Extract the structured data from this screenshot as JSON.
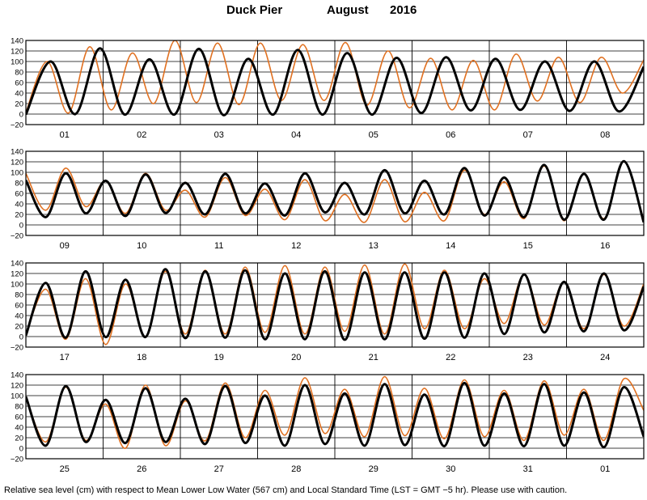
{
  "header": {
    "station": "Duck Pier",
    "month": "August",
    "year": "2016"
  },
  "caption": "Relative sea level (cm) with respect to Mean Lower Low Water (567 cm) and Local Standard Time (LST = GMT −5 hr). Please use with caution.",
  "colors": {
    "predicted": "#000000",
    "observed": "#e07020",
    "grid": "#000000"
  },
  "chart_data": {
    "type": "line",
    "ylim": [
      -20,
      140
    ],
    "yticks": [
      "140",
      "120",
      "100",
      "80",
      "60",
      "40",
      "20",
      "0",
      "−20"
    ],
    "grid": true,
    "panels": [
      {
        "days": [
          "01",
          "02",
          "03",
          "04",
          "05",
          "06",
          "07",
          "08"
        ],
        "series": [
          {
            "values": [
              -1,
              100,
              0,
              125,
              -1,
              104,
              -1,
              124,
              -2,
              105,
              -1,
              122,
              -1,
              116,
              -1,
              107,
              2,
              108,
              7,
              105,
              8,
              100,
              6,
              100,
              5,
              90
            ]
          },
          {
            "values": [
              3,
              100,
              2,
              128,
              8,
              116,
              20,
              140,
              22,
              135,
              18,
              135,
              26,
              132,
              26,
              136,
              17,
              120,
              12,
              106,
              8,
              102,
              8,
              114,
              25,
              108,
              22,
              108,
              40,
              103
            ]
          }
        ]
      },
      {
        "days": [
          "09",
          "10",
          "11",
          "12",
          "13",
          "14",
          "15",
          "16"
        ],
        "series": [
          {
            "values": [
              85,
              15,
              98,
              22,
              84,
              17,
              96,
              23,
              80,
              20,
              97,
              22,
              79,
              18,
              98,
              24,
              80,
              20,
              104,
              22,
              84,
              20,
              108,
              18,
              90,
              15,
              114,
              10,
              97,
              10,
              121,
              5
            ]
          },
          {
            "values": [
              98,
              28,
              108,
              35,
              84,
              22,
              98,
              28,
              66,
              15,
              90,
              18,
              68,
              10,
              86,
              8,
              58,
              5,
              86,
              6,
              62,
              8,
              104,
              20,
              82,
              12,
              112,
              8,
              98,
              12,
              120,
              8
            ]
          }
        ]
      },
      {
        "days": [
          "17",
          "18",
          "19",
          "20",
          "21",
          "22",
          "23",
          "24"
        ],
        "series": [
          {
            "values": [
              2,
              102,
              -2,
              124,
              -1,
              108,
              -1,
              128,
              -3,
              124,
              -2,
              126,
              -5,
              120,
              -5,
              124,
              -6,
              122,
              -5,
              122,
              -4,
              122,
              -2,
              120,
              5,
              118,
              8,
              104,
              10,
              120,
              12,
              95
            ]
          },
          {
            "values": [
              5,
              90,
              -5,
              110,
              -15,
              100,
              0,
              124,
              5,
              126,
              5,
              132,
              8,
              135,
              5,
              132,
              10,
              136,
              5,
              138,
              15,
              126,
              15,
              110,
              25,
              118,
              22,
              104,
              15,
              118,
              20,
              100
            ]
          }
        ]
      },
      {
        "days": [
          "25",
          "26",
          "27",
          "28",
          "29",
          "30",
          "31",
          "01"
        ],
        "series": [
          {
            "values": [
              98,
              5,
              118,
              12,
              92,
              10,
              114,
              12,
              94,
              8,
              118,
              10,
              100,
              5,
              120,
              8,
              104,
              5,
              122,
              6,
              102,
              4,
              124,
              5,
              104,
              4,
              122,
              5,
              106,
              2,
              116,
              22
            ]
          },
          {
            "values": [
              98,
              12,
              116,
              15,
              84,
              0,
              120,
              5,
              90,
              14,
              124,
              20,
              110,
              25,
              134,
              28,
              112,
              22,
              136,
              24,
              114,
              18,
              130,
              22,
              110,
              15,
              128,
              25,
              112,
              15,
              132,
              72
            ]
          }
        ]
      }
    ]
  }
}
